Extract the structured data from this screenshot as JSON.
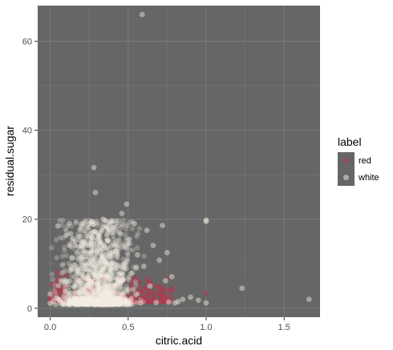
{
  "chart_data": {
    "type": "scatter",
    "xlabel": "citric.acid",
    "ylabel": "residual.sugar",
    "xlim": [
      -0.08,
      1.73
    ],
    "ylim": [
      -2,
      68
    ],
    "x_ticks": [
      "0.0",
      "0.5",
      "1.0",
      "1.5"
    ],
    "y_ticks": [
      "0",
      "20",
      "40",
      "60"
    ],
    "grid": true,
    "legend": {
      "title": "label",
      "placement": "right",
      "entries": [
        "red",
        "white"
      ]
    },
    "colors": {
      "panel": "#666666",
      "red": "#b23a4e",
      "white": "#f5efe2",
      "grid_major": "#7a7a7a"
    },
    "series": [
      {
        "name": "red",
        "points": [
          [
            0.0,
            1.9
          ],
          [
            0.0,
            2.2
          ],
          [
            0.01,
            2.6
          ],
          [
            0.02,
            3.4
          ],
          [
            0.03,
            5.5
          ],
          [
            0.04,
            2.1
          ],
          [
            0.05,
            8.2
          ],
          [
            0.06,
            6.1
          ],
          [
            0.08,
            2.3
          ],
          [
            0.1,
            4.8
          ],
          [
            0.12,
            2.2
          ],
          [
            0.15,
            2.5
          ],
          [
            0.18,
            3.0
          ],
          [
            0.2,
            1.8
          ],
          [
            0.22,
            2.9
          ],
          [
            0.25,
            2.0
          ],
          [
            0.28,
            6.4
          ],
          [
            0.3,
            2.4
          ],
          [
            0.32,
            2.1
          ],
          [
            0.35,
            3.2
          ],
          [
            0.38,
            2.0
          ],
          [
            0.4,
            2.6
          ],
          [
            0.42,
            5.1
          ],
          [
            0.45,
            2.3
          ],
          [
            0.48,
            1.9
          ],
          [
            0.5,
            2.8
          ],
          [
            0.52,
            4.3
          ],
          [
            0.55,
            2.5
          ],
          [
            0.58,
            3.6
          ],
          [
            0.6,
            2.1
          ],
          [
            0.62,
            1.8
          ],
          [
            0.64,
            5.6
          ],
          [
            0.65,
            2.4
          ],
          [
            0.68,
            2.0
          ],
          [
            0.7,
            3.4
          ],
          [
            0.72,
            2.2
          ],
          [
            0.74,
            2.7
          ],
          [
            0.76,
            1.9
          ],
          [
            0.78,
            4.4
          ],
          [
            1.0,
            3.4
          ]
        ]
      },
      {
        "name": "white",
        "points": [
          [
            0.0,
            1.1
          ],
          [
            0.0,
            3.2
          ],
          [
            0.02,
            1.5
          ],
          [
            0.05,
            2.1
          ],
          [
            0.05,
            18.5
          ],
          [
            0.08,
            1.2
          ],
          [
            0.1,
            6.0
          ],
          [
            0.12,
            1.4
          ],
          [
            0.14,
            11.2
          ],
          [
            0.16,
            2.0
          ],
          [
            0.18,
            8.5
          ],
          [
            0.2,
            1.2
          ],
          [
            0.2,
            14.0
          ],
          [
            0.22,
            4.5
          ],
          [
            0.24,
            16.2
          ],
          [
            0.25,
            1.5
          ],
          [
            0.26,
            9.8
          ],
          [
            0.27,
            19.5
          ],
          [
            0.28,
            31.6
          ],
          [
            0.28,
            5.4
          ],
          [
            0.29,
            26.0
          ],
          [
            0.3,
            12.3
          ],
          [
            0.3,
            1.0
          ],
          [
            0.31,
            7.2
          ],
          [
            0.32,
            17.0
          ],
          [
            0.33,
            2.6
          ],
          [
            0.34,
            20.0
          ],
          [
            0.35,
            10.5
          ],
          [
            0.36,
            3.8
          ],
          [
            0.37,
            15.1
          ],
          [
            0.38,
            1.3
          ],
          [
            0.39,
            8.9
          ],
          [
            0.4,
            18.1
          ],
          [
            0.41,
            4.2
          ],
          [
            0.42,
            12.8
          ],
          [
            0.43,
            1.1
          ],
          [
            0.44,
            6.6
          ],
          [
            0.45,
            16.7
          ],
          [
            0.46,
            21.3
          ],
          [
            0.47,
            2.9
          ],
          [
            0.48,
            10.1
          ],
          [
            0.49,
            23.4
          ],
          [
            0.5,
            1.6
          ],
          [
            0.5,
            14.5
          ],
          [
            0.52,
            7.8
          ],
          [
            0.54,
            19.0
          ],
          [
            0.55,
            3.1
          ],
          [
            0.56,
            12.0
          ],
          [
            0.58,
            1.2
          ],
          [
            0.59,
            66.0
          ],
          [
            0.6,
            9.4
          ],
          [
            0.62,
            17.5
          ],
          [
            0.64,
            5.0
          ],
          [
            0.66,
            14.1
          ],
          [
            0.68,
            1.3
          ],
          [
            0.7,
            10.8
          ],
          [
            0.72,
            18.6
          ],
          [
            0.74,
            6.2
          ],
          [
            0.75,
            12.5
          ],
          [
            0.76,
            1.4
          ],
          [
            0.78,
            7.1
          ],
          [
            0.8,
            1.2
          ],
          [
            0.82,
            1.5
          ],
          [
            0.85,
            2.0
          ],
          [
            0.9,
            2.5
          ],
          [
            0.95,
            1.8
          ],
          [
            1.0,
            19.5
          ],
          [
            1.0,
            19.8
          ],
          [
            1.0,
            1.2
          ],
          [
            1.23,
            4.5
          ],
          [
            1.66,
            2.0
          ]
        ]
      }
    ]
  }
}
